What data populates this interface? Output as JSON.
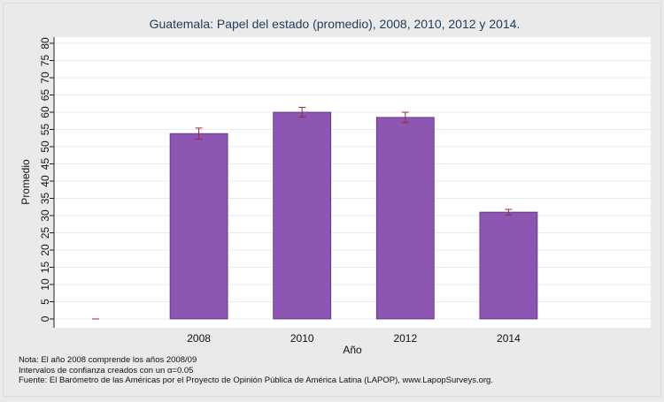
{
  "chart_data": {
    "type": "bar",
    "title": "Guatemala: Papel del estado (promedio), 2008, 2010, 2012 y 2014.",
    "xlabel": "Año",
    "ylabel": "Promedio",
    "categories": [
      "",
      "2008",
      "2010",
      "2012",
      "2014"
    ],
    "values": [
      0,
      53.8,
      60.0,
      58.5,
      31.0
    ],
    "ci_low": [
      0,
      52.2,
      58.6,
      57.0,
      30.2
    ],
    "ci_high": [
      0,
      55.4,
      61.4,
      60.0,
      31.8
    ],
    "ylim": [
      0,
      80
    ],
    "yticks": [
      0,
      5,
      10,
      15,
      20,
      25,
      30,
      35,
      40,
      45,
      50,
      55,
      60,
      65,
      70,
      75,
      80
    ],
    "grid": true,
    "colors": {
      "bar": "#8e56b3",
      "bar_edge": "#5a2f78",
      "error_bar": "#8b2e3a",
      "plot_bg": "#ffffff"
    }
  },
  "notes": [
    "Nota: El año 2008 comprende los años 2008/09",
    "Intervalos de confianza creados con un α=0.05",
    "Fuente: El Barómetro de las Américas por el Proyecto de Opinión Pública de América Latina (LAPOP), www.LapopSurveys.org."
  ]
}
